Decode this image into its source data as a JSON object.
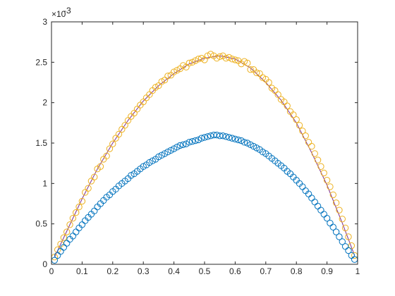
{
  "chart_data": {
    "type": "scatter",
    "title": "",
    "xlabel": "",
    "ylabel": "",
    "xlim": [
      0,
      1
    ],
    "ylim": [
      0,
      0.003
    ],
    "y_exponent_label": "×10",
    "y_exponent_power": "-3",
    "x_ticks": [
      "0",
      "0.1",
      "0.2",
      "0.3",
      "0.4",
      "0.5",
      "0.6",
      "0.7",
      "0.8",
      "0.9",
      "1"
    ],
    "y_ticks": [
      "0",
      "0.5",
      "1",
      "1.5",
      "2",
      "2.5",
      "3"
    ],
    "grid": false,
    "legend": "none",
    "series": [
      {
        "marker": "circle",
        "color": "#EDB120",
        "x": [
          0.01,
          0.02,
          0.03,
          0.04,
          0.05,
          0.06,
          0.07,
          0.08,
          0.09,
          0.1,
          0.11,
          0.12,
          0.13,
          0.14,
          0.15,
          0.16,
          0.17,
          0.18,
          0.19,
          0.2,
          0.21,
          0.22,
          0.23,
          0.24,
          0.25,
          0.26,
          0.27,
          0.28,
          0.29,
          0.3,
          0.31,
          0.32,
          0.33,
          0.34,
          0.35,
          0.36,
          0.37,
          0.38,
          0.39,
          0.4,
          0.41,
          0.42,
          0.43,
          0.44,
          0.45,
          0.46,
          0.47,
          0.48,
          0.49,
          0.5,
          0.51,
          0.52,
          0.53,
          0.54,
          0.55,
          0.56,
          0.57,
          0.58,
          0.59,
          0.6,
          0.61,
          0.62,
          0.63,
          0.64,
          0.65,
          0.66,
          0.67,
          0.68,
          0.69,
          0.7,
          0.71,
          0.72,
          0.73,
          0.74,
          0.75,
          0.76,
          0.77,
          0.78,
          0.79,
          0.8,
          0.81,
          0.82,
          0.83,
          0.84,
          0.85,
          0.86,
          0.87,
          0.88,
          0.89,
          0.9,
          0.91,
          0.92,
          0.93,
          0.94,
          0.95,
          0.96,
          0.97,
          0.98,
          0.99
        ],
        "y": [
          9e-05,
          0.00018,
          0.00025,
          0.00033,
          0.0004,
          0.00049,
          0.00057,
          0.00064,
          0.00071,
          0.00078,
          0.00089,
          0.00094,
          0.00103,
          0.00108,
          0.00118,
          0.00121,
          0.0013,
          0.00134,
          0.00143,
          0.00149,
          0.00156,
          0.00161,
          0.00167,
          0.00172,
          0.00178,
          0.00183,
          0.00187,
          0.00192,
          0.00197,
          0.00201,
          0.00206,
          0.0021,
          0.00215,
          0.00219,
          0.00221,
          0.00226,
          0.00228,
          0.00233,
          0.00234,
          0.00238,
          0.0024,
          0.00242,
          0.00246,
          0.00244,
          0.00249,
          0.0025,
          0.00252,
          0.00254,
          0.00255,
          0.00253,
          0.00258,
          0.0026,
          0.00258,
          0.00255,
          0.00257,
          0.00258,
          0.00255,
          0.00256,
          0.00254,
          0.00253,
          0.00252,
          0.00248,
          0.00251,
          0.00249,
          0.00241,
          0.00241,
          0.00237,
          0.00236,
          0.00231,
          0.00229,
          0.00225,
          0.00218,
          0.00215,
          0.0021,
          0.00204,
          0.00201,
          0.00196,
          0.00189,
          0.00185,
          0.00179,
          0.00172,
          0.00165,
          0.00159,
          0.00151,
          0.00146,
          0.00137,
          0.00129,
          0.00121,
          0.00113,
          0.00104,
          0.00096,
          0.00086,
          0.00076,
          0.00067,
          0.00056,
          0.00045,
          0.00034,
          0.00023,
          0.00011
        ]
      },
      {
        "marker": "circle",
        "color": "#0072BD",
        "x": [
          0.01,
          0.02,
          0.03,
          0.04,
          0.05,
          0.06,
          0.07,
          0.08,
          0.09,
          0.1,
          0.11,
          0.12,
          0.13,
          0.14,
          0.15,
          0.16,
          0.17,
          0.18,
          0.19,
          0.2,
          0.21,
          0.22,
          0.23,
          0.24,
          0.25,
          0.26,
          0.27,
          0.28,
          0.29,
          0.3,
          0.31,
          0.32,
          0.33,
          0.34,
          0.35,
          0.36,
          0.37,
          0.38,
          0.39,
          0.4,
          0.41,
          0.42,
          0.43,
          0.44,
          0.45,
          0.46,
          0.47,
          0.48,
          0.49,
          0.5,
          0.51,
          0.52,
          0.53,
          0.54,
          0.55,
          0.56,
          0.57,
          0.58,
          0.59,
          0.6,
          0.61,
          0.62,
          0.63,
          0.64,
          0.65,
          0.66,
          0.67,
          0.68,
          0.69,
          0.7,
          0.71,
          0.72,
          0.73,
          0.74,
          0.75,
          0.76,
          0.77,
          0.78,
          0.79,
          0.8,
          0.81,
          0.82,
          0.83,
          0.84,
          0.85,
          0.86,
          0.87,
          0.88,
          0.89,
          0.9,
          0.91,
          0.92,
          0.93,
          0.94,
          0.95,
          0.96,
          0.97,
          0.98,
          0.99
        ],
        "y": [
          5e-05,
          0.00011,
          0.00016,
          0.00021,
          0.00026,
          0.00031,
          0.00035,
          0.0004,
          0.00045,
          0.00049,
          0.00054,
          0.00058,
          0.00062,
          0.00066,
          0.00071,
          0.00075,
          0.00079,
          0.00083,
          0.00086,
          0.0009,
          0.00093,
          0.00097,
          0.001,
          0.00103,
          0.00106,
          0.0011,
          0.00112,
          0.00115,
          0.00118,
          0.00121,
          0.00123,
          0.00126,
          0.00128,
          0.0013,
          0.00133,
          0.00135,
          0.00137,
          0.00139,
          0.00141,
          0.00143,
          0.00145,
          0.00147,
          0.00148,
          0.00149,
          0.00151,
          0.00152,
          0.00153,
          0.00154,
          0.00156,
          0.00157,
          0.00158,
          0.00159,
          0.0016,
          0.0016,
          0.00159,
          0.00159,
          0.00158,
          0.00157,
          0.00156,
          0.00155,
          0.00154,
          0.00153,
          0.00151,
          0.0015,
          0.00148,
          0.00146,
          0.00144,
          0.00142,
          0.00139,
          0.00137,
          0.00134,
          0.00131,
          0.00128,
          0.00125,
          0.00122,
          0.00119,
          0.00115,
          0.00112,
          0.00108,
          0.00104,
          0.001,
          0.00096,
          0.00091,
          0.00087,
          0.00082,
          0.00077,
          0.00072,
          0.00067,
          0.00062,
          0.00057,
          0.00051,
          0.00046,
          0.0004,
          0.00034,
          0.00028,
          0.00022,
          0.00017,
          0.00011,
          6e-05
        ]
      }
    ],
    "fit_curve": {
      "color": "#7E2F8E",
      "x": [
        0.01,
        0.05,
        0.1,
        0.15,
        0.2,
        0.25,
        0.3,
        0.35,
        0.4,
        0.45,
        0.5,
        0.55,
        0.6,
        0.65,
        0.7,
        0.75,
        0.8,
        0.85,
        0.9,
        0.95,
        0.99
      ],
      "y": [
        9e-05,
        0.00041,
        0.00081,
        0.00118,
        0.0015,
        0.00178,
        0.00202,
        0.00221,
        0.00236,
        0.00248,
        0.00255,
        0.00258,
        0.00254,
        0.00243,
        0.00225,
        0.00203,
        0.00175,
        0.00138,
        0.00098,
        0.00051,
        0.00011
      ]
    }
  }
}
